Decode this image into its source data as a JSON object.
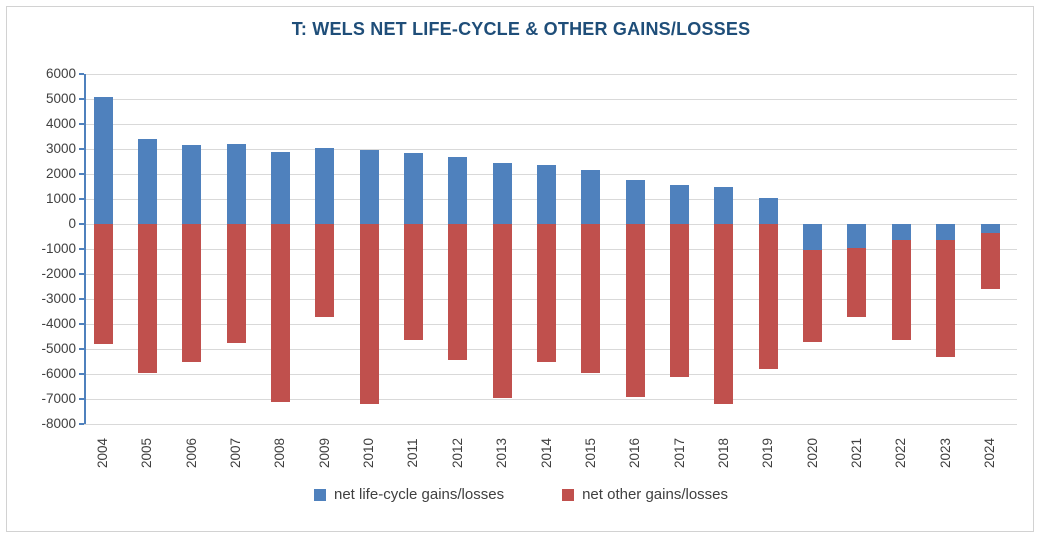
{
  "title": "T: WELS NET LIFE-CYCLE & OTHER GAINS/LOSSES",
  "colors": {
    "title_text": "#1F4E79",
    "lifecycle_blue": "#4F81BD",
    "other_red": "#C0504D",
    "gridline": "#D9D9D9",
    "axis_line": "#4F81BD",
    "axis_text": "#404040",
    "frame_border": "#D2D2D2"
  },
  "chart_data": {
    "type": "bar",
    "stacked": true,
    "title": "T: WELS NET LIFE-CYCLE & OTHER GAINS/LOSSES",
    "xlabel": "",
    "ylabel": "",
    "grid": true,
    "legend_position": "bottom",
    "ylim": [
      -8000,
      6000
    ],
    "yticks": [
      6000,
      5000,
      4000,
      3000,
      2000,
      1000,
      0,
      -1000,
      -2000,
      -3000,
      -4000,
      -5000,
      -6000,
      -7000,
      -8000
    ],
    "categories": [
      "2004",
      "2005",
      "2006",
      "2007",
      "2008",
      "2009",
      "2010",
      "2011",
      "2012",
      "2013",
      "2014",
      "2015",
      "2016",
      "2017",
      "2018",
      "2019",
      "2020",
      "2021",
      "2022",
      "2023",
      "2024"
    ],
    "series": [
      {
        "name": "net life-cycle gains/losses",
        "color": "#4F81BD",
        "values": [
          5100,
          3400,
          3150,
          3200,
          2900,
          3050,
          2950,
          2850,
          2700,
          2450,
          2350,
          2150,
          1750,
          1550,
          1500,
          1050,
          -1050,
          -950,
          -650,
          -650,
          -350
        ]
      },
      {
        "name": "net other gains/losses",
        "color": "#C0504D",
        "values": [
          -4800,
          -5950,
          -5500,
          -4750,
          -7100,
          -3700,
          -7200,
          -4650,
          -5450,
          -6950,
          -5500,
          -5950,
          -6900,
          -6100,
          -7200,
          -5800,
          -3650,
          -2750,
          -4000,
          -4650,
          -2250
        ]
      }
    ]
  }
}
